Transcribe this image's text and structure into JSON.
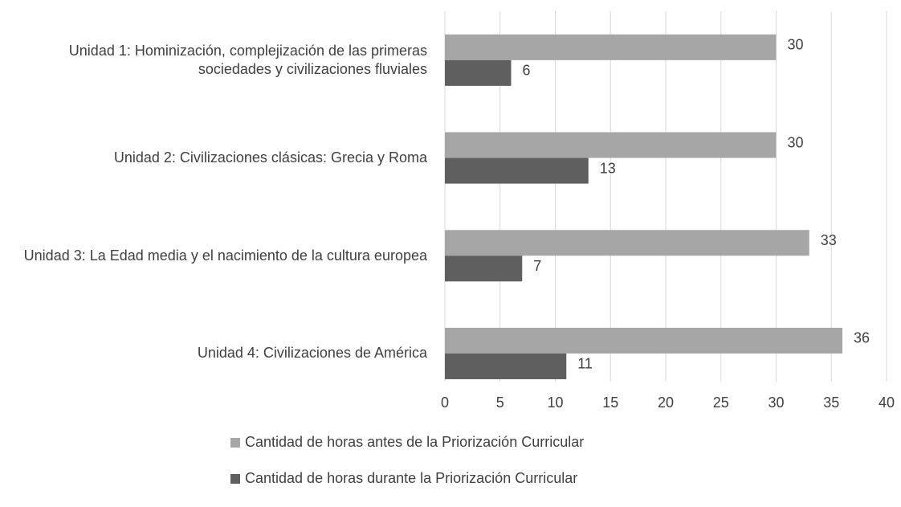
{
  "chart_data": {
    "type": "bar",
    "orientation": "horizontal",
    "categories": [
      "Unidad 1: Hominización, complejización de las primeras sociedades y civilizaciones fluviales",
      "Unidad 2: Civilizaciones clásicas: Grecia y Roma",
      "Unidad 3: La Edad media y el nacimiento de la cultura europea",
      "Unidad 4: Civilizaciones de América"
    ],
    "series": [
      {
        "name": "Cantidad de horas antes de la Priorización Curricular",
        "color": "#a6a6a6",
        "values": [
          30,
          30,
          33,
          36
        ]
      },
      {
        "name": "Cantidad de horas durante la Priorización Curricular",
        "color": "#5f5f5f",
        "values": [
          6,
          13,
          7,
          11
        ]
      }
    ],
    "xlim": [
      0,
      40
    ],
    "xticks": [
      0,
      5,
      10,
      15,
      20,
      25,
      30,
      35,
      40
    ],
    "grid": true,
    "legend": "bottom"
  }
}
